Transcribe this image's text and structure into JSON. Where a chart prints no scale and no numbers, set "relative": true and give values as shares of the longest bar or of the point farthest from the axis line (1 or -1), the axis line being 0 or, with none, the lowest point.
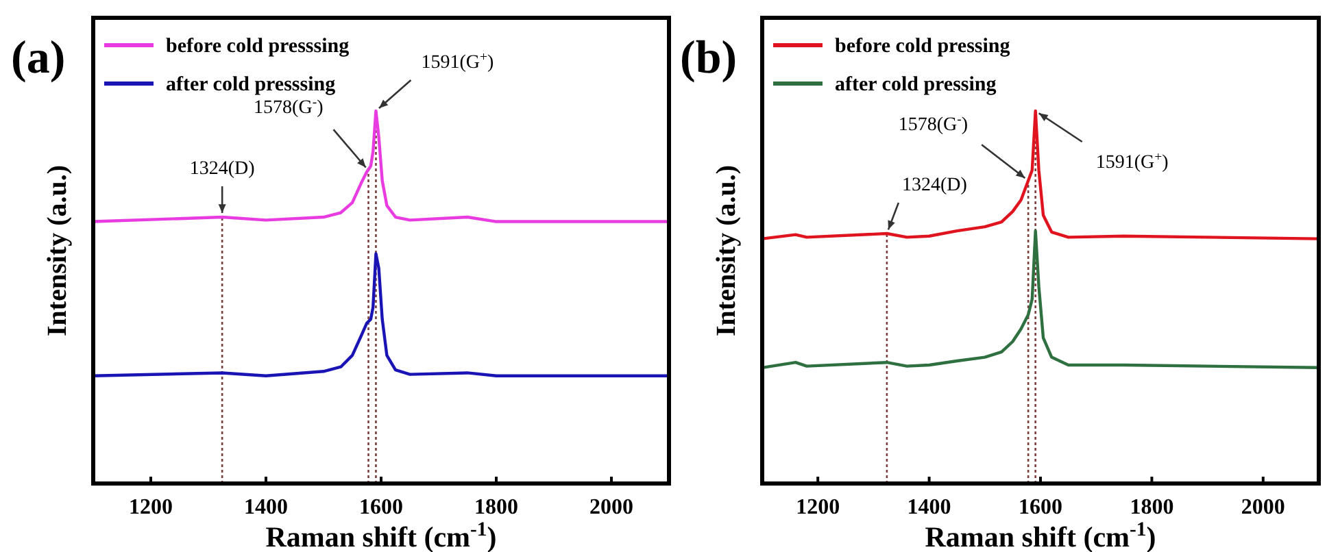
{
  "chart_data": [
    {
      "type": "line",
      "title": "(a)",
      "xlabel": "Raman shift (cm$^{-1}$)",
      "ylabel": "Intensity (a.u.)",
      "relative": true,
      "xlim": [
        1100,
        2100
      ],
      "xticks": [
        1200,
        1400,
        1600,
        1800,
        2000
      ],
      "legend": "top left",
      "grid": false,
      "marker": "none",
      "line_style": "solid",
      "series": [
        {
          "name": "before cold presssing",
          "color": "#e83ce0",
          "x": [
            1100,
            1324,
            1400,
            1500,
            1530,
            1550,
            1565,
            1575,
            1582,
            1586,
            1591,
            1596,
            1602,
            1610,
            1625,
            1650,
            1750,
            1800,
            2100
          ],
          "values": [
            0.703,
            0.715,
            0.707,
            0.715,
            0.727,
            0.754,
            0.805,
            0.836,
            0.852,
            0.891,
            1,
            0.93,
            0.813,
            0.746,
            0.715,
            0.707,
            0.715,
            0.703,
            0.703
          ]
        },
        {
          "name": "after cold presssing",
          "color": "#1a14b4",
          "x": [
            1100,
            1324,
            1400,
            1500,
            1530,
            1550,
            1565,
            1575,
            1582,
            1586,
            1591,
            1596,
            1602,
            1610,
            1625,
            1650,
            1750,
            1800,
            2100
          ],
          "values": [
            0.289,
            0.297,
            0.289,
            0.301,
            0.313,
            0.344,
            0.395,
            0.43,
            0.441,
            0.473,
            0.617,
            0.578,
            0.441,
            0.344,
            0.305,
            0.293,
            0.297,
            0.289,
            0.289
          ]
        }
      ],
      "ref_lines": [
        {
          "axis": "x",
          "value": 1324,
          "color": "#7b3f3f",
          "line_style": "dotted"
        },
        {
          "axis": "x",
          "value": 1578,
          "color": "#7b3f3f",
          "line_style": "dotted"
        },
        {
          "axis": "x",
          "value": 1591,
          "color": "#7b3f3f",
          "line_style": "dotted"
        }
      ],
      "annotations": [
        {
          "text": "1324(D)",
          "x": 1324,
          "y": 0.715
        },
        {
          "text": "1578(G$^{-}$)",
          "x": 1578,
          "y": 0.84
        },
        {
          "text": "1591(G$^{+}$)",
          "x": 1591,
          "y": 1
        }
      ]
    },
    {
      "type": "line",
      "title": "(b)",
      "xlabel": "Raman shift (cm$^{-1}$)",
      "ylabel": "Intensity (a.u.)",
      "relative": true,
      "xlim": [
        1100,
        2100
      ],
      "xticks": [
        1200,
        1400,
        1600,
        1800,
        2000
      ],
      "legend": "top left",
      "grid": false,
      "marker": "none",
      "line_style": "solid",
      "series": [
        {
          "name": "before cold pressing",
          "color": "#e0141e",
          "x": [
            1100,
            1160,
            1180,
            1324,
            1360,
            1400,
            1450,
            1500,
            1530,
            1550,
            1565,
            1578,
            1585,
            1591,
            1597,
            1605,
            1620,
            1650,
            1750,
            2100
          ],
          "values": [
            0.657,
            0.668,
            0.661,
            0.671,
            0.661,
            0.664,
            0.678,
            0.689,
            0.702,
            0.73,
            0.761,
            0.813,
            0.841,
            1,
            0.841,
            0.72,
            0.675,
            0.661,
            0.664,
            0.657
          ]
        },
        {
          "name": "after cold pressing",
          "color": "#2e7040",
          "x": [
            1100,
            1160,
            1180,
            1324,
            1360,
            1400,
            1450,
            1500,
            1530,
            1550,
            1565,
            1578,
            1585,
            1591,
            1597,
            1605,
            1620,
            1650,
            1750,
            2100
          ],
          "values": [
            0.311,
            0.325,
            0.315,
            0.325,
            0.315,
            0.318,
            0.329,
            0.339,
            0.353,
            0.381,
            0.415,
            0.453,
            0.495,
            0.678,
            0.529,
            0.391,
            0.339,
            0.318,
            0.318,
            0.311
          ]
        }
      ],
      "ref_lines": [
        {
          "axis": "x",
          "value": 1324,
          "color": "#7b3f3f",
          "line_style": "dotted"
        },
        {
          "axis": "x",
          "value": 1578,
          "color": "#7b3f3f",
          "line_style": "dotted"
        },
        {
          "axis": "x",
          "value": 1591,
          "color": "#7b3f3f",
          "line_style": "dotted"
        }
      ],
      "annotations": [
        {
          "text": "1324(D)",
          "x": 1324,
          "y": 0.671
        },
        {
          "text": "1578(G$^{-}$)",
          "x": 1578,
          "y": 0.813
        },
        {
          "text": "1591(G$^{+}$)",
          "x": 1591,
          "y": 1
        }
      ]
    }
  ]
}
